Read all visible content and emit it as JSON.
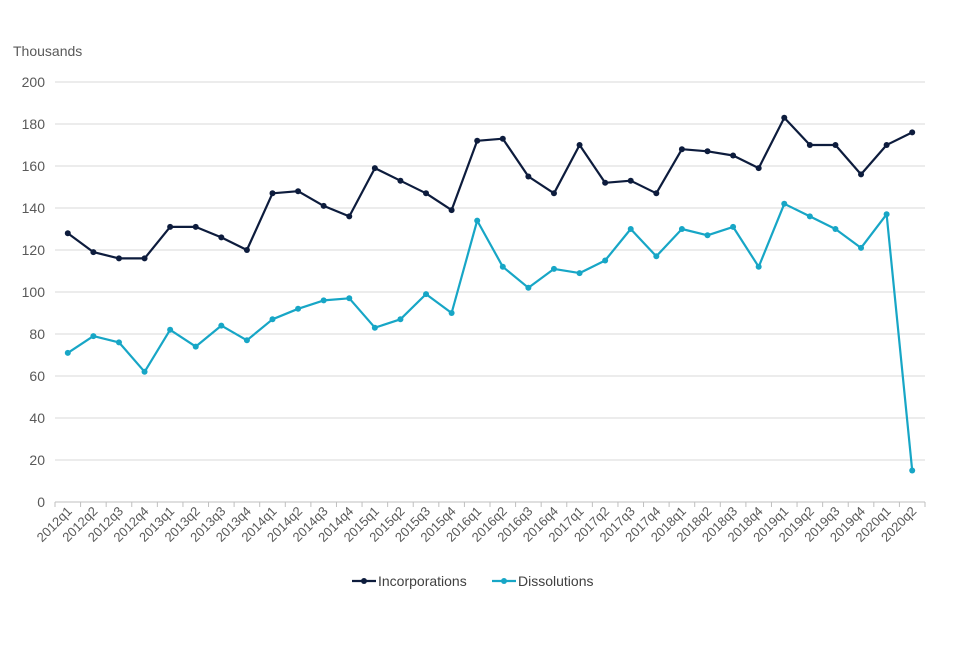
{
  "chart_data": {
    "type": "line",
    "ylabel": "Thousands",
    "ylim": [
      0,
      200
    ],
    "yticks": [
      "0",
      "20",
      "40",
      "60",
      "80",
      "100",
      "120",
      "140",
      "160",
      "180",
      "200"
    ],
    "grid": true,
    "legend_position": "bottom",
    "categories": [
      "2012q1",
      "2012q2",
      "2012q3",
      "2012q4",
      "2013q1",
      "2013q2",
      "2013q3",
      "2013q4",
      "2014q1",
      "2014q2",
      "2014q3",
      "2014q4",
      "2015q1",
      "2015q2",
      "2015q3",
      "2015q4",
      "2016q1",
      "2016q2",
      "2016q3",
      "2016q4",
      "2017q1",
      "2017q2",
      "2017q3",
      "2017q4",
      "2018q1",
      "2018q2",
      "2018q3",
      "2018q4",
      "2019q1",
      "2019q2",
      "2019q3",
      "2019q4",
      "2020q1",
      "2020q2"
    ],
    "series": [
      {
        "name": "Incorporations",
        "color": "#0d1c3d",
        "values": [
          128,
          119,
          116,
          116,
          131,
          131,
          126,
          120,
          147,
          148,
          141,
          136,
          159,
          153,
          147,
          139,
          172,
          173,
          155,
          147,
          170,
          152,
          153,
          147,
          168,
          167,
          165,
          159,
          183,
          170,
          170,
          156,
          170,
          176
        ]
      },
      {
        "name": "Dissolutions",
        "color": "#17a6c6",
        "values": [
          71,
          79,
          76,
          62,
          82,
          74,
          84,
          77,
          87,
          92,
          96,
          97,
          83,
          87,
          99,
          90,
          134,
          112,
          102,
          111,
          109,
          115,
          130,
          117,
          130,
          127,
          131,
          112,
          142,
          136,
          130,
          121,
          137,
          15
        ]
      }
    ]
  }
}
